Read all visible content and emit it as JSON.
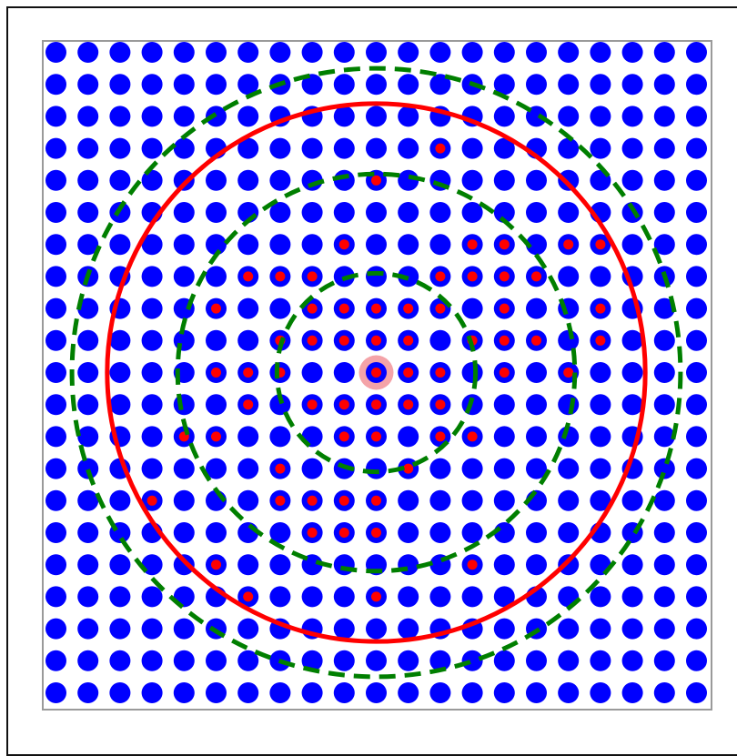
{
  "colors": {
    "grid_dot": "#0000ff",
    "highlight_dot": "#ff0000",
    "center_marker": "#f4a3a8",
    "solid_circle": "#ff0000",
    "dashed_circle": "#007f00",
    "axes_frame": "#9a9a9a"
  },
  "chart_data": {
    "type": "scatter",
    "title": "",
    "xlabel": "",
    "ylabel": "",
    "grid": {
      "columns": 21,
      "rows": 21,
      "x_range": [
        -10,
        10
      ],
      "y_range": [
        -10,
        10
      ]
    },
    "center": [
      0,
      0
    ],
    "circles": [
      {
        "radius": 3.1,
        "style": "dashed",
        "color": "dashed_circle"
      },
      {
        "radius": 6.2,
        "style": "dashed",
        "color": "dashed_circle"
      },
      {
        "radius": 8.4,
        "style": "solid",
        "color": "solid_circle"
      },
      {
        "radius": 9.5,
        "style": "dashed",
        "color": "dashed_circle"
      }
    ],
    "highlighted_points": [
      [
        2,
        7
      ],
      [
        0,
        6
      ],
      [
        -1,
        4
      ],
      [
        3,
        4
      ],
      [
        4,
        4
      ],
      [
        6,
        4
      ],
      [
        7,
        4
      ],
      [
        -4,
        3
      ],
      [
        -3,
        3
      ],
      [
        -2,
        3
      ],
      [
        2,
        3
      ],
      [
        3,
        3
      ],
      [
        4,
        3
      ],
      [
        5,
        3
      ],
      [
        -5,
        2
      ],
      [
        -2,
        2
      ],
      [
        -1,
        2
      ],
      [
        0,
        2
      ],
      [
        1,
        2
      ],
      [
        2,
        2
      ],
      [
        4,
        2
      ],
      [
        7,
        2
      ],
      [
        -3,
        1
      ],
      [
        -2,
        1
      ],
      [
        -1,
        1
      ],
      [
        0,
        1
      ],
      [
        1,
        1
      ],
      [
        3,
        1
      ],
      [
        4,
        1
      ],
      [
        5,
        1
      ],
      [
        7,
        1
      ],
      [
        -5,
        0
      ],
      [
        -4,
        0
      ],
      [
        -3,
        0
      ],
      [
        0,
        0
      ],
      [
        1,
        0
      ],
      [
        2,
        0
      ],
      [
        4,
        0
      ],
      [
        6,
        0
      ],
      [
        -4,
        -1
      ],
      [
        -2,
        -1
      ],
      [
        -1,
        -1
      ],
      [
        0,
        -1
      ],
      [
        1,
        -1
      ],
      [
        2,
        -1
      ],
      [
        -6,
        -2
      ],
      [
        -5,
        -2
      ],
      [
        -1,
        -2
      ],
      [
        0,
        -2
      ],
      [
        2,
        -2
      ],
      [
        3,
        -2
      ],
      [
        -3,
        -3
      ],
      [
        1,
        -3
      ],
      [
        -7,
        -4
      ],
      [
        -3,
        -4
      ],
      [
        -2,
        -4
      ],
      [
        -1,
        -4
      ],
      [
        0,
        -4
      ],
      [
        -2,
        -5
      ],
      [
        -1,
        -5
      ],
      [
        0,
        -5
      ],
      [
        -5,
        -6
      ],
      [
        3,
        -6
      ],
      [
        -4,
        -7
      ],
      [
        0,
        -7
      ]
    ]
  }
}
